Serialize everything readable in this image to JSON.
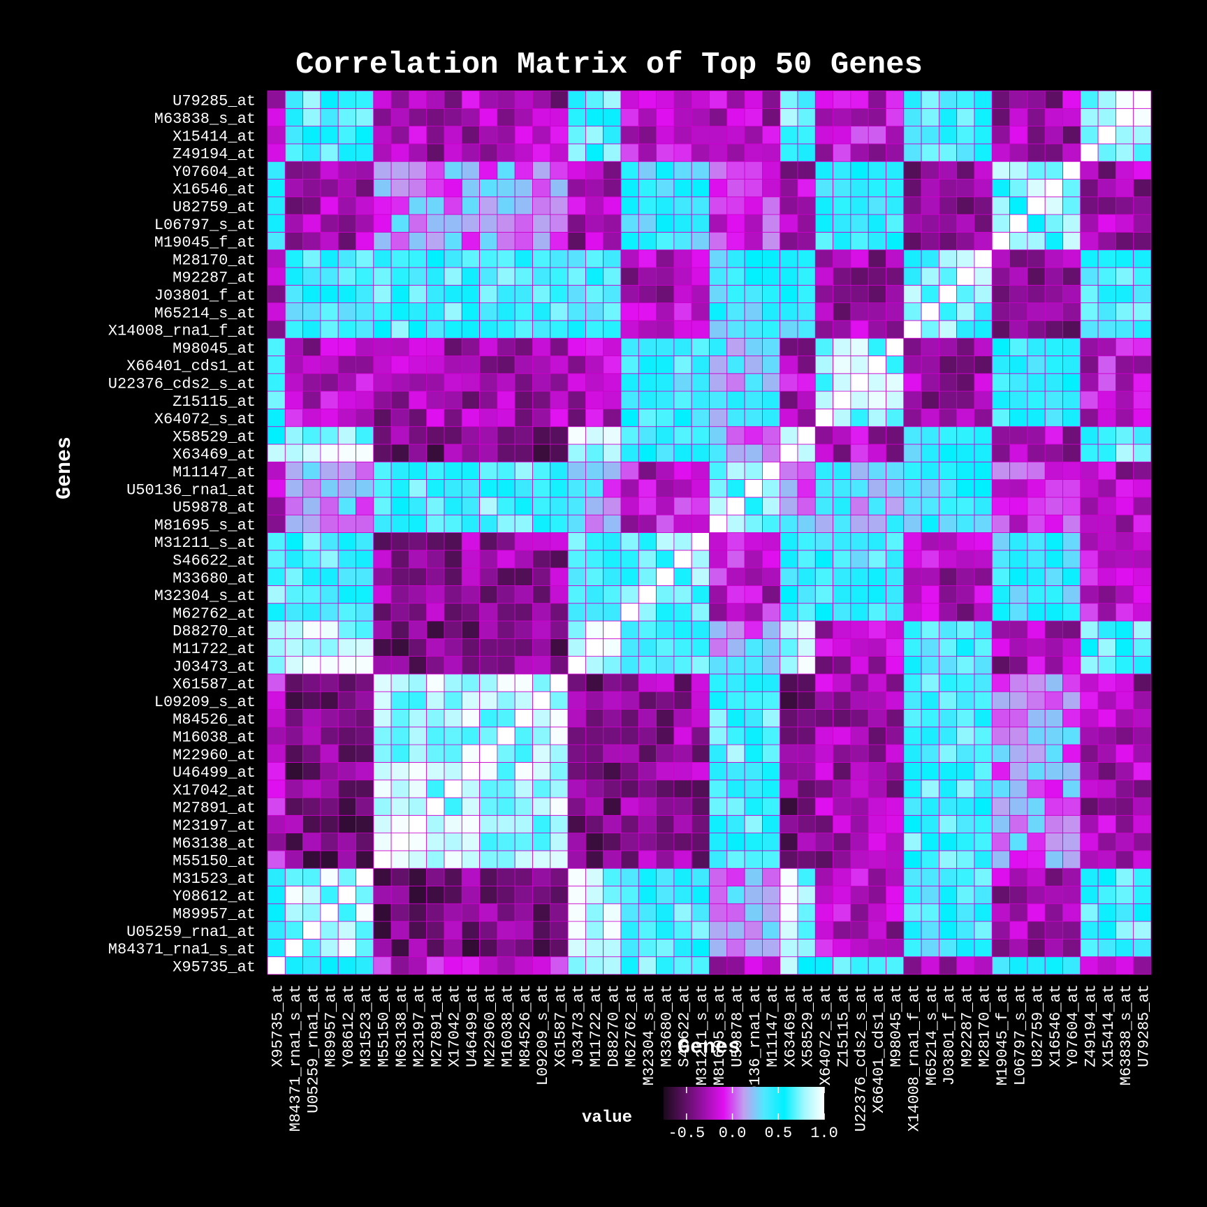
{
  "chart_data": {
    "type": "heatmap",
    "title": "Correlation Matrix of Top 50 Genes",
    "xlabel": "Genes",
    "ylabel": "Genes",
    "legend": {
      "title": "value",
      "placement": "bottom",
      "ticks": [
        "-0.5",
        "0.0",
        "0.5",
        "1.0"
      ],
      "range": [
        -0.75,
        1.0
      ]
    },
    "colors": {
      "background": "#000000",
      "cell_border": "#cc00cc",
      "scale": [
        "#1a0a1a",
        "#5a1060",
        "#9a10a8",
        "#e010f0",
        "#c0a0f0",
        "#50e8ff",
        "#00f0ff",
        "#a0f8ff",
        "#ffffff"
      ]
    },
    "genes": [
      "X95735_at",
      "M84371_rna1_s_at",
      "U05259_rna1_at",
      "M89957_at",
      "Y08612_at",
      "M31523_at",
      "M55150_at",
      "M63138_at",
      "M23197_at",
      "M27891_at",
      "X17042_at",
      "U46499_at",
      "M22960_at",
      "M16038_at",
      "M84526_at",
      "L09209_s_at",
      "X61587_at",
      "J03473_at",
      "M11722_at",
      "D88270_at",
      "M62762_at",
      "M32304_s_at",
      "M33680_at",
      "S46622_at",
      "M31211_s_at",
      "M81695_s_at",
      "U59878_at",
      "U50136_rna1_at",
      "M11147_at",
      "X63469_at",
      "X58529_at",
      "X64072_s_at",
      "Z15115_at",
      "U22376_cds2_s_at",
      "X66401_cds1_at",
      "M98045_at",
      "X14008_rna1_f_at",
      "M65214_s_at",
      "J03801_f_at",
      "M92287_at",
      "M28170_at",
      "M19045_f_at",
      "L06797_s_at",
      "U82759_at",
      "X16546_at",
      "Y07604_at",
      "Z49194_at",
      "X15414_at",
      "M63838_s_at",
      "U79285_at"
    ],
    "groups": [
      0,
      1,
      1,
      1,
      1,
      1,
      2,
      2,
      2,
      2,
      2,
      2,
      2,
      2,
      2,
      2,
      2,
      1,
      1,
      1,
      3,
      3,
      3,
      3,
      3,
      4,
      4,
      4,
      4,
      1,
      1,
      5,
      5,
      5,
      5,
      5,
      6,
      6,
      6,
      6,
      6,
      7,
      7,
      7,
      7,
      7,
      8,
      8,
      8,
      8
    ],
    "group_correlation": [
      [
        1.0,
        0.65,
        -0.2,
        0.7,
        -0.3,
        0.6,
        -0.3,
        0.5,
        -0.2
      ],
      [
        0.65,
        0.85,
        -0.45,
        0.55,
        0.15,
        -0.25,
        0.5,
        -0.3,
        0.6
      ],
      [
        -0.2,
        -0.45,
        0.85,
        -0.35,
        0.6,
        -0.3,
        0.55,
        0.1,
        -0.3
      ],
      [
        0.7,
        0.55,
        -0.35,
        0.7,
        -0.2,
        0.5,
        -0.25,
        0.45,
        -0.2
      ],
      [
        -0.3,
        0.15,
        0.6,
        -0.2,
        0.75,
        0.25,
        0.45,
        -0.1,
        -0.25
      ],
      [
        0.6,
        -0.25,
        -0.3,
        0.5,
        0.25,
        0.75,
        -0.3,
        0.5,
        -0.2
      ],
      [
        -0.3,
        0.5,
        0.55,
        -0.25,
        0.45,
        -0.3,
        0.65,
        -0.4,
        0.55
      ],
      [
        0.5,
        -0.3,
        0.1,
        0.45,
        -0.1,
        0.5,
        -0.4,
        0.7,
        -0.3
      ],
      [
        -0.2,
        0.6,
        -0.3,
        -0.2,
        -0.25,
        -0.2,
        0.55,
        -0.3,
        0.85
      ]
    ]
  }
}
